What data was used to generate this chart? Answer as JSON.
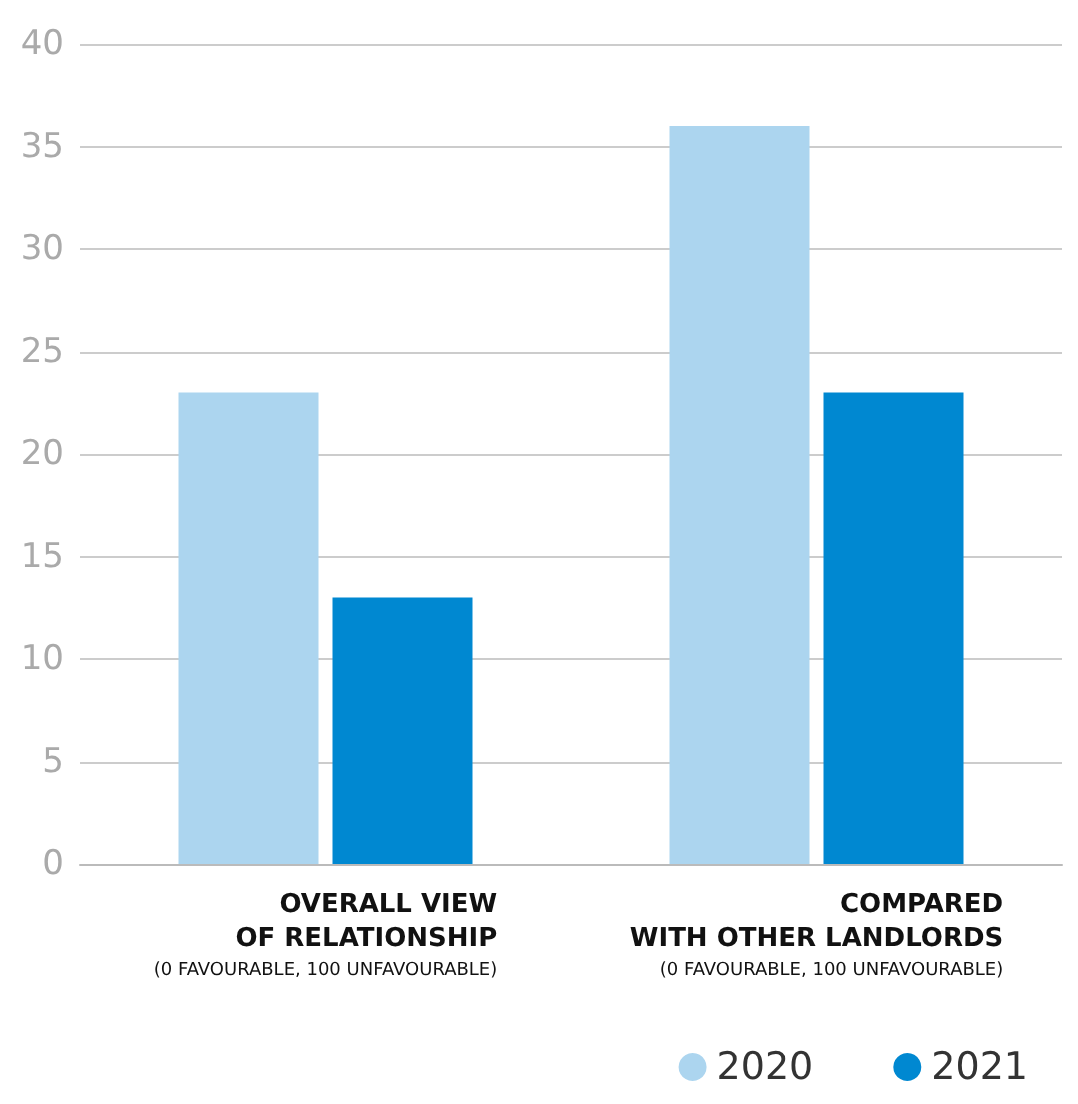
{
  "chart_data": {
    "type": "bar",
    "categories": [
      "OVERALL VIEW\nOF RELATIONSHIP\n(0 FAVOURABLE, 100 UNFAVOURABLE)",
      "COMPARED\nWITH OTHER LANDLORDS\n(0 FAVOURABLE, 100 UNFAVOURABLE)"
    ],
    "series": [
      {
        "name": "2020",
        "color": "#acd5ef",
        "values": [
          23,
          36
        ]
      },
      {
        "name": "2021",
        "color": "#0088d1",
        "values": [
          13,
          23
        ]
      }
    ],
    "ylim": [
      0,
      40
    ],
    "yticks": [
      0,
      5,
      10,
      15,
      20,
      25,
      30,
      35,
      40
    ],
    "grid": "y",
    "legend": "bottom right"
  }
}
